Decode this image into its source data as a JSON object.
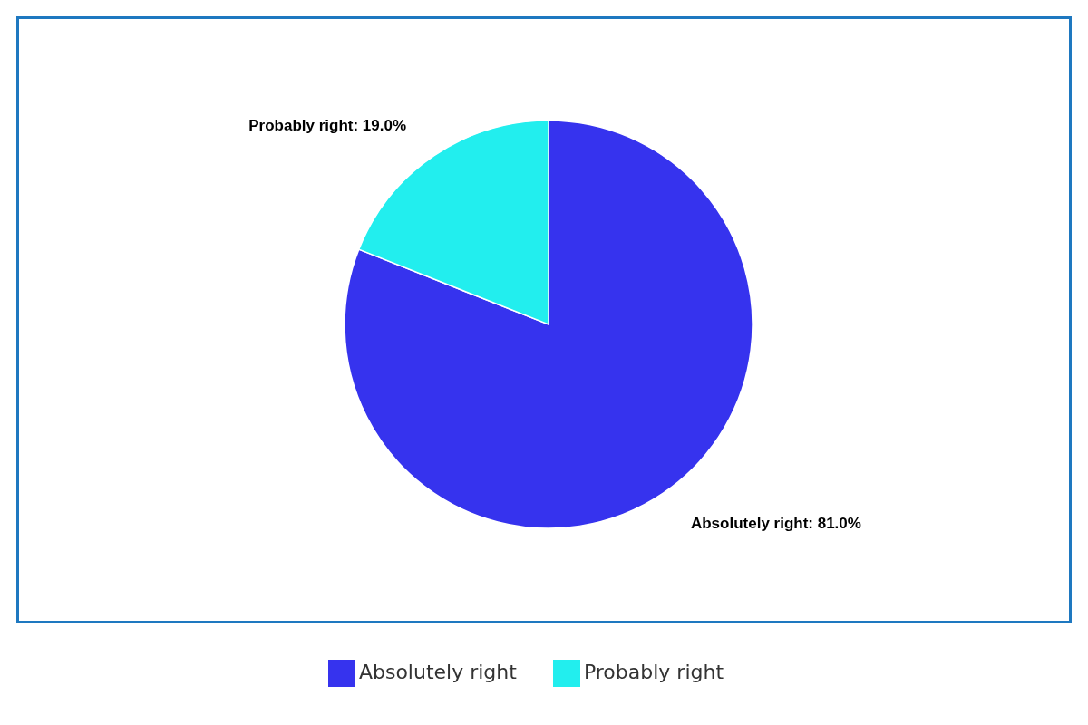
{
  "chart_data": {
    "type": "pie",
    "categories": [
      "Absolutely right",
      "Probably right"
    ],
    "values": [
      81,
      19
    ],
    "colors": [
      "#3633ee",
      "#22eeee"
    ],
    "value_labels": [
      "Absolutely right: 81.0%",
      "Probably right: 19.0%"
    ],
    "legend": "bottom"
  }
}
